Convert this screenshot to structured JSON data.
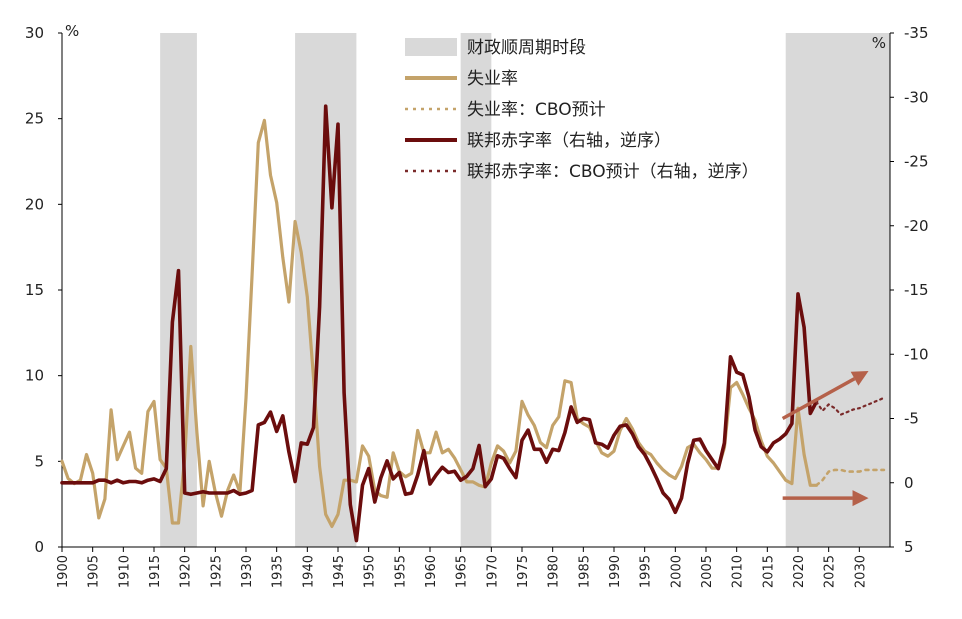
{
  "chart_data": {
    "type": "line",
    "title": "",
    "left_axis": {
      "unit_label": "%",
      "ylim": [
        0,
        30
      ],
      "ticks": [
        "0",
        "5",
        "10",
        "15",
        "20",
        "25",
        "30"
      ]
    },
    "right_axis": {
      "unit_label": "%",
      "ylim": [
        5,
        -35
      ],
      "reversed": true,
      "ticks": [
        "5",
        "0",
        "-5",
        "-10",
        "-15",
        "-20",
        "-25",
        "-30",
        "-35"
      ]
    },
    "x_axis": {
      "xlim": [
        1900,
        2035
      ],
      "ticks": [
        "1900",
        "1905",
        "1910",
        "1915",
        "1920",
        "1925",
        "1930",
        "1935",
        "1940",
        "1945",
        "1950",
        "1955",
        "1960",
        "1965",
        "1970",
        "1975",
        "1980",
        "1985",
        "1990",
        "1995",
        "2000",
        "2005",
        "2010",
        "2015",
        "2020",
        "2025",
        "2030"
      ]
    },
    "legend": [
      {
        "key": "shade",
        "label": "财政顺周期时段",
        "color": "#d9d9d9",
        "style": "band"
      },
      {
        "key": "unemp",
        "label": "失业率",
        "color": "#c4a36a",
        "style": "solid"
      },
      {
        "key": "unemp_cbo",
        "label": "失业率：CBO预计",
        "color": "#c4a36a",
        "style": "dotted"
      },
      {
        "key": "deficit",
        "label": "联邦赤字率（右轴，逆序）",
        "color": "#6b0d0d",
        "style": "solid"
      },
      {
        "key": "deficit_cbo",
        "label": "联邦赤字率：CBO预计（右轴，逆序）",
        "color": "#7a2a2a",
        "style": "dotted"
      }
    ],
    "shaded_periods": [
      [
        1916,
        1922
      ],
      [
        1938,
        1948
      ],
      [
        1965,
        1970
      ],
      [
        2018,
        2035
      ]
    ],
    "series": [
      {
        "name": "失业率",
        "axis": "left",
        "x": [
          1900,
          1901,
          1902,
          1903,
          1904,
          1905,
          1906,
          1907,
          1908,
          1909,
          1910,
          1911,
          1912,
          1913,
          1914,
          1915,
          1916,
          1917,
          1918,
          1919,
          1920,
          1921,
          1922,
          1923,
          1924,
          1925,
          1926,
          1927,
          1928,
          1929,
          1930,
          1931,
          1932,
          1933,
          1934,
          1935,
          1936,
          1937,
          1938,
          1939,
          1940,
          1941,
          1942,
          1943,
          1944,
          1945,
          1946,
          1947,
          1948,
          1949,
          1950,
          1951,
          1952,
          1953,
          1954,
          1955,
          1956,
          1957,
          1958,
          1959,
          1960,
          1961,
          1962,
          1963,
          1964,
          1965,
          1966,
          1967,
          1968,
          1969,
          1970,
          1971,
          1972,
          1973,
          1974,
          1975,
          1976,
          1977,
          1978,
          1979,
          1980,
          1981,
          1982,
          1983,
          1984,
          1985,
          1986,
          1987,
          1988,
          1989,
          1990,
          1991,
          1992,
          1993,
          1994,
          1995,
          1996,
          1997,
          1998,
          1999,
          2000,
          2001,
          2002,
          2003,
          2004,
          2005,
          2006,
          2007,
          2008,
          2009,
          2010,
          2011,
          2012,
          2013,
          2014,
          2015,
          2016,
          2017,
          2018,
          2019,
          2020,
          2021,
          2022,
          2023
        ],
        "values": [
          5.0,
          4.0,
          3.7,
          3.9,
          5.4,
          4.3,
          1.7,
          2.8,
          8.0,
          5.1,
          5.9,
          6.7,
          4.6,
          4.3,
          7.9,
          8.5,
          5.1,
          4.6,
          1.4,
          1.4,
          5.2,
          11.7,
          6.7,
          2.4,
          5.0,
          3.2,
          1.8,
          3.3,
          4.2,
          3.2,
          8.7,
          15.9,
          23.6,
          24.9,
          21.7,
          20.1,
          16.9,
          14.3,
          19.0,
          17.2,
          14.6,
          9.9,
          4.7,
          1.9,
          1.2,
          1.9,
          3.9,
          3.9,
          3.8,
          5.9,
          5.3,
          3.3,
          3.0,
          2.9,
          5.5,
          4.4,
          4.1,
          4.3,
          6.8,
          5.5,
          5.5,
          6.7,
          5.5,
          5.7,
          5.2,
          4.5,
          3.8,
          3.8,
          3.6,
          3.5,
          4.9,
          5.9,
          5.6,
          4.9,
          5.6,
          8.5,
          7.7,
          7.1,
          6.1,
          5.8,
          7.1,
          7.6,
          9.7,
          9.6,
          7.5,
          7.2,
          7.0,
          6.2,
          5.5,
          5.3,
          5.6,
          6.8,
          7.5,
          6.9,
          6.1,
          5.6,
          5.4,
          4.9,
          4.5,
          4.2,
          4.0,
          4.7,
          5.8,
          6.0,
          5.5,
          5.1,
          4.6,
          4.6,
          5.8,
          9.3,
          9.6,
          8.9,
          8.1,
          7.4,
          6.2,
          5.3,
          4.9,
          4.4,
          3.9,
          3.7,
          8.1,
          5.4,
          3.6,
          3.6
        ]
      },
      {
        "name": "失业率：CBO预计",
        "axis": "left",
        "x": [
          2023,
          2024,
          2025,
          2026,
          2027,
          2028,
          2029,
          2030,
          2031,
          2032,
          2033,
          2034
        ],
        "values": [
          3.6,
          3.9,
          4.4,
          4.5,
          4.5,
          4.4,
          4.4,
          4.4,
          4.5,
          4.5,
          4.5,
          4.5
        ]
      },
      {
        "name": "联邦赤字率（右轴，逆序）",
        "axis": "right",
        "x": [
          1900,
          1901,
          1902,
          1903,
          1904,
          1905,
          1906,
          1907,
          1908,
          1909,
          1910,
          1911,
          1912,
          1913,
          1914,
          1915,
          1916,
          1917,
          1918,
          1919,
          1920,
          1921,
          1922,
          1923,
          1924,
          1925,
          1926,
          1927,
          1928,
          1929,
          1930,
          1931,
          1932,
          1933,
          1934,
          1935,
          1936,
          1937,
          1938,
          1939,
          1940,
          1941,
          1942,
          1943,
          1944,
          1945,
          1946,
          1947,
          1948,
          1949,
          1950,
          1951,
          1952,
          1953,
          1954,
          1955,
          1956,
          1957,
          1958,
          1959,
          1960,
          1961,
          1962,
          1963,
          1964,
          1965,
          1966,
          1967,
          1968,
          1969,
          1970,
          1971,
          1972,
          1973,
          1974,
          1975,
          1976,
          1977,
          1978,
          1979,
          1980,
          1981,
          1982,
          1983,
          1984,
          1985,
          1986,
          1987,
          1988,
          1989,
          1990,
          1991,
          1992,
          1993,
          1994,
          1995,
          1996,
          1997,
          1998,
          1999,
          2000,
          2001,
          2002,
          2003,
          2004,
          2005,
          2006,
          2007,
          2008,
          2009,
          2010,
          2011,
          2012,
          2013,
          2014,
          2015,
          2016,
          2017,
          2018,
          2019,
          2020,
          2021,
          2022,
          2023
        ],
        "values": [
          0,
          0,
          0,
          0,
          0,
          0,
          -0.2,
          -0.2,
          0,
          -0.2,
          0,
          -0.1,
          -0.1,
          0,
          -0.2,
          -0.3,
          -0.1,
          -1.1,
          -12.5,
          -16.5,
          0.8,
          0.9,
          0.8,
          0.7,
          0.8,
          0.8,
          0.8,
          0.8,
          0.6,
          0.9,
          0.8,
          0.6,
          -4.5,
          -4.7,
          -5.5,
          -4,
          -5.2,
          -2.4,
          -0.1,
          -3.1,
          -3.0,
          -4.3,
          -13.7,
          -29.3,
          -21.4,
          -27.9,
          -7.0,
          1.7,
          4.5,
          0.2,
          -1.1,
          1.5,
          -0.4,
          -1.7,
          -0.3,
          -0.8,
          0.9,
          0.8,
          -0.6,
          -2.5,
          0.1,
          -0.6,
          -1.2,
          -0.8,
          -0.9,
          -0.2,
          -0.5,
          -1.1,
          -2.9,
          0.3,
          -0.3,
          -2.1,
          -1.9,
          -1.1,
          -0.4,
          -3.3,
          -4.1,
          -2.6,
          -2.6,
          -1.6,
          -2.6,
          -2.5,
          -3.9,
          -5.9,
          -4.7,
          -5.0,
          -4.9,
          -3.1,
          -3.0,
          -2.7,
          -3.7,
          -4.4,
          -4.5,
          -3.8,
          -2.8,
          -2.2,
          -1.3,
          -0.3,
          0.8,
          1.3,
          2.3,
          1.2,
          -1.5,
          -3.3,
          -3.4,
          -2.5,
          -1.8,
          -1.1,
          -3.1,
          -9.8,
          -8.6,
          -8.4,
          -6.7,
          -4.1,
          -2.8,
          -2.4,
          -3.1,
          -3.4,
          -3.8,
          -4.6,
          -14.7,
          -12.1,
          -5.4,
          -6.3
        ]
      },
      {
        "name": "联邦赤字率：CBO预计（右轴，逆序）",
        "axis": "right",
        "x": [
          2023,
          2024,
          2025,
          2026,
          2027,
          2028,
          2029,
          2030,
          2031,
          2032,
          2033,
          2034
        ],
        "values": [
          -6.3,
          -5.6,
          -6.1,
          -5.8,
          -5.3,
          -5.5,
          -5.7,
          -5.8,
          -6.0,
          -6.2,
          -6.4,
          -6.6
        ]
      }
    ],
    "annotations": [
      {
        "type": "arrow",
        "color": "#b5614a",
        "from": [
          2017.5,
          -5.0
        ],
        "to": [
          2031.5,
          -8.7
        ],
        "axis": "right"
      },
      {
        "type": "arrow",
        "color": "#b5614a",
        "from": [
          2017.5,
          1.2
        ],
        "to": [
          2031.5,
          1.2
        ],
        "axis": "right"
      }
    ]
  }
}
